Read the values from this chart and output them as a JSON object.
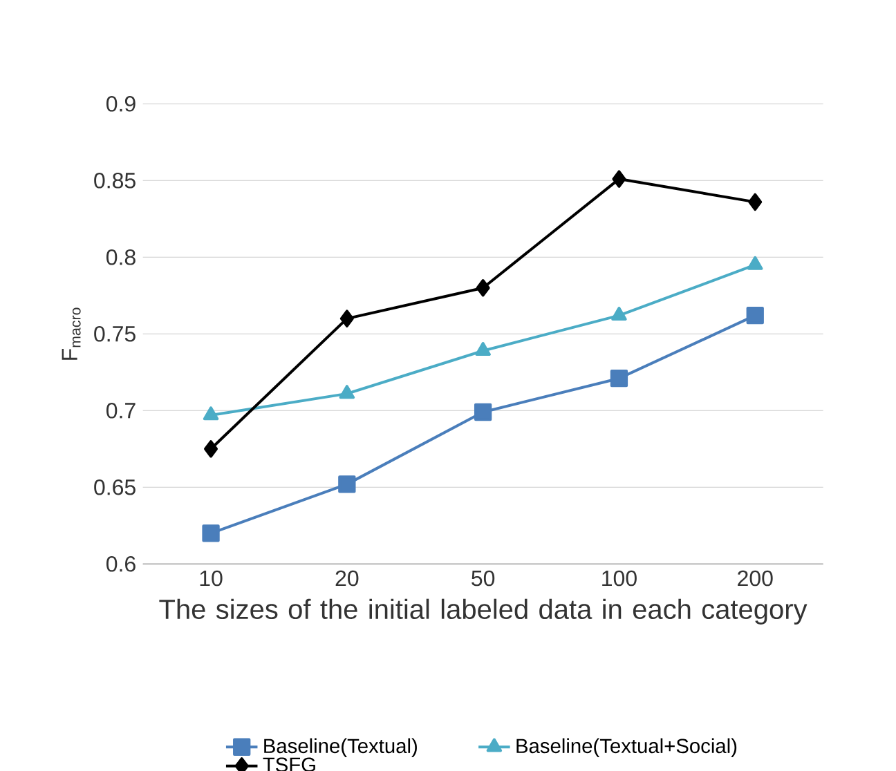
{
  "chart_data": {
    "type": "line",
    "xlabel": "The sizes of the initial labeled data in each category",
    "ylabel": "F$_{macro}$",
    "categories": [
      "10",
      "20",
      "50",
      "100",
      "200"
    ],
    "ylim": [
      0.6,
      0.9
    ],
    "yticks": [
      0.6,
      0.65,
      0.7,
      0.75,
      0.8,
      0.85,
      0.9
    ],
    "grid": "y",
    "legend": "bottom",
    "series": [
      {
        "name": "Baseline(Textual)",
        "color": "#4a7ebb",
        "marker": "square",
        "values": [
          0.62,
          0.652,
          0.699,
          0.721,
          0.762
        ]
      },
      {
        "name": "Baseline(Textual+Social)",
        "color": "#4bacc6",
        "marker": "triangle",
        "values": [
          0.697,
          0.711,
          0.739,
          0.762,
          0.795
        ]
      },
      {
        "name": "TSFG",
        "color": "#000000",
        "marker": "diamond",
        "values": [
          0.675,
          0.76,
          0.78,
          0.851,
          0.836
        ]
      }
    ]
  }
}
